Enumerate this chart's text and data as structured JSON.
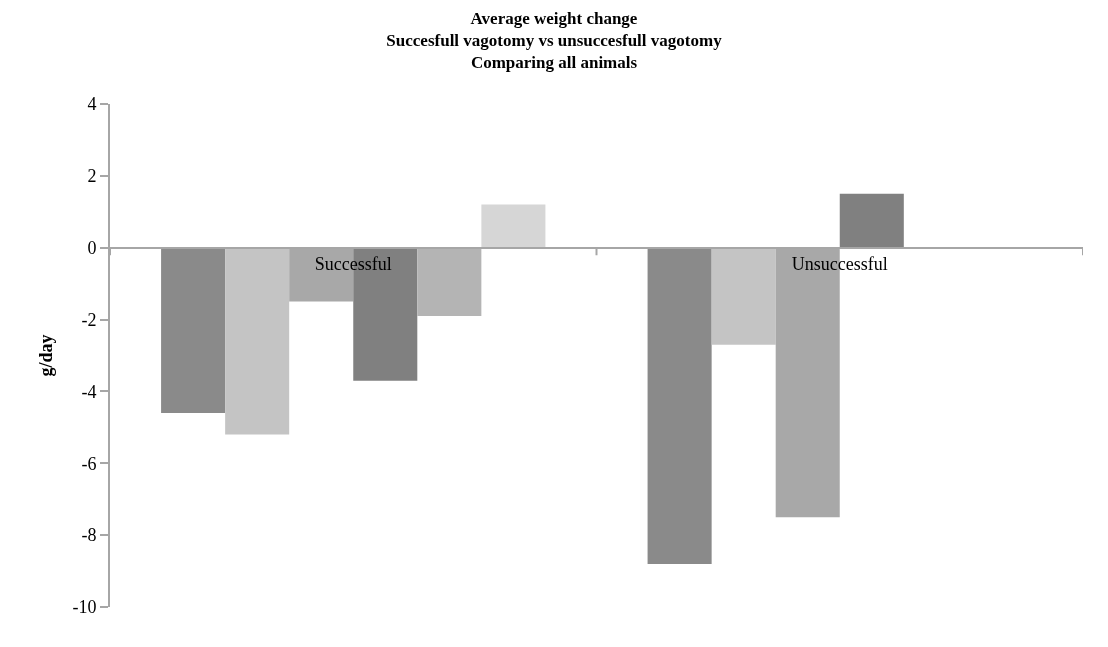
{
  "chart_data": {
    "type": "bar",
    "title": "Average weight change\nSuccesfull vagotomy vs unsuccesfull vagotomy\nComparing all animals",
    "ylabel": "g/day",
    "categories": [
      "Successful",
      "Unsuccessful"
    ],
    "series": [
      {
        "color": "#8a8a8a",
        "values": [
          -4.6,
          -8.8
        ]
      },
      {
        "color": "#c4c4c4",
        "values": [
          -5.2,
          -2.7
        ]
      },
      {
        "color": "#a8a8a8",
        "values": [
          -1.5,
          -7.5
        ]
      },
      {
        "color": "#808080",
        "values": [
          -3.7,
          1.5
        ]
      },
      {
        "color": "#b4b4b4",
        "values": [
          -1.9,
          null
        ]
      },
      {
        "color": "#d6d6d6",
        "values": [
          1.2,
          null
        ]
      }
    ],
    "ylim": [
      -10,
      4
    ],
    "yticks": [
      -10,
      -8,
      -6,
      -4,
      -2,
      0,
      2,
      4
    ]
  }
}
